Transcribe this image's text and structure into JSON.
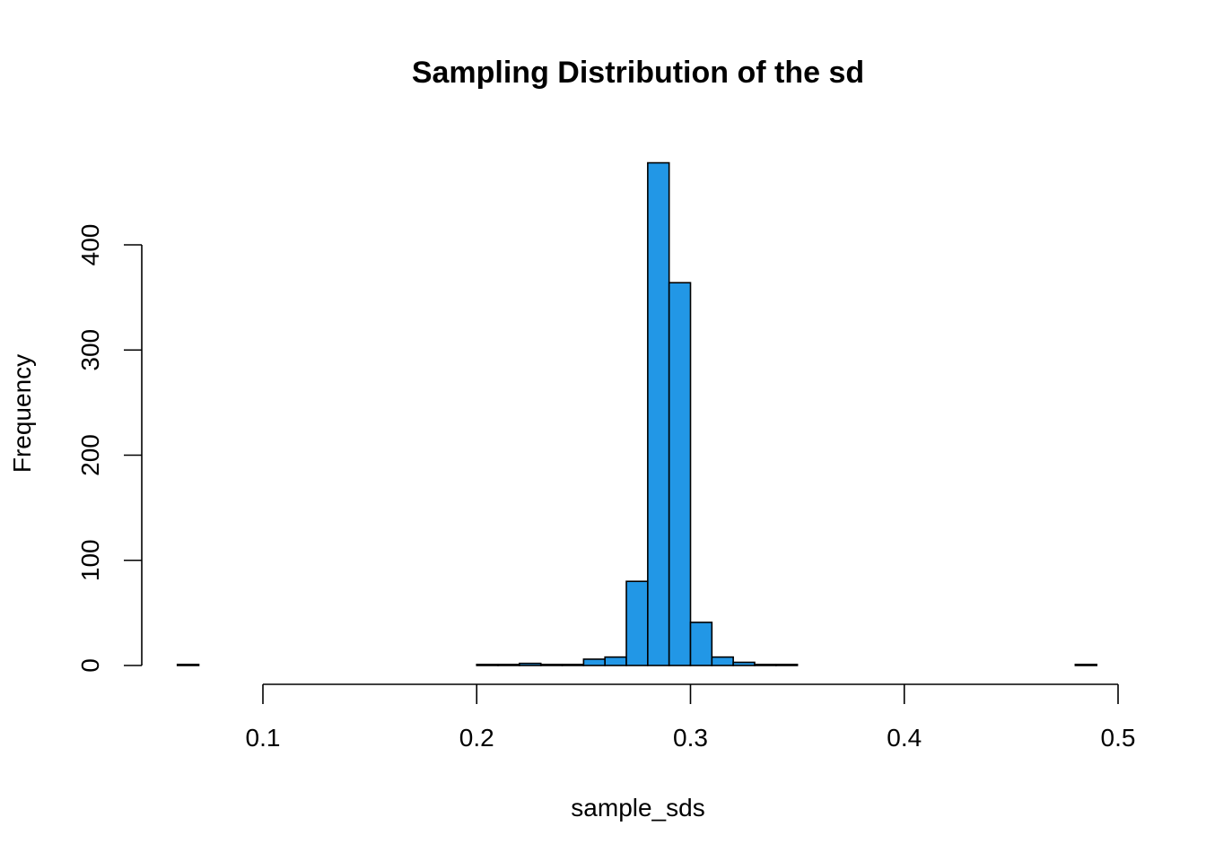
{
  "chart_data": {
    "type": "bar",
    "title": "Sampling Distribution of the sd",
    "xlabel": "sample_sds",
    "ylabel": "Frequency",
    "bar_color": "#2297E6",
    "bin_width": 0.01,
    "bin_starts": [
      0.06,
      0.07,
      0.08,
      0.09,
      0.1,
      0.11,
      0.12,
      0.13,
      0.14,
      0.15,
      0.16,
      0.17,
      0.18,
      0.19,
      0.2,
      0.21,
      0.22,
      0.23,
      0.24,
      0.25,
      0.26,
      0.27,
      0.28,
      0.29,
      0.3,
      0.31,
      0.32,
      0.33,
      0.34,
      0.35,
      0.36,
      0.37,
      0.38,
      0.39,
      0.4,
      0.41,
      0.42,
      0.43,
      0.44,
      0.45,
      0.46,
      0.47,
      0.48
    ],
    "values": [
      1,
      0,
      0,
      0,
      0,
      0,
      0,
      0,
      0,
      0,
      0,
      0,
      0,
      0,
      1,
      1,
      2,
      1,
      1,
      6,
      8,
      80,
      478,
      364,
      41,
      8,
      3,
      1,
      1,
      0,
      0,
      0,
      0,
      0,
      0,
      0,
      0,
      0,
      0,
      0,
      0,
      0,
      1
    ],
    "xlim": [
      0.06,
      0.49
    ],
    "ylim": [
      0,
      480
    ],
    "x_ticks": [
      "0.1",
      "0.2",
      "0.3",
      "0.4",
      "0.5"
    ],
    "y_ticks": [
      "0",
      "100",
      "200",
      "300",
      "400"
    ],
    "grid": false,
    "legend": "none"
  }
}
